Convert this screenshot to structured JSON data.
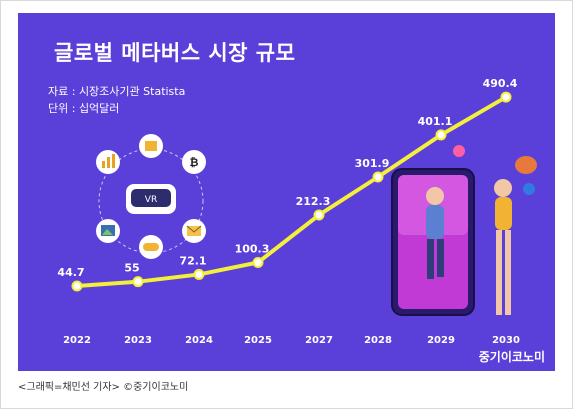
{
  "header": {
    "title": "글로벌 메타버스 시장 규모",
    "source": "자료 : 시장조사기관 Statista",
    "unit": "단위 : 십억달러"
  },
  "brand": "중기이코노미",
  "caption": "<그래픽=채민선 기자>  ©중기이코노미",
  "icons": [
    "chart-icon",
    "box-icon",
    "bitcoin-icon",
    "image-icon",
    "gamepad-icon",
    "mail-icon",
    "vr-headset-icon"
  ],
  "colors": {
    "background": "#5a3fd8",
    "line": "#f3ef3b",
    "text": "#ffffff"
  },
  "chart_data": {
    "type": "line",
    "title": "글로벌 메타버스 시장 규모",
    "categories": [
      "2022",
      "2023",
      "2024",
      "2025",
      "2027",
      "2028",
      "2029",
      "2030"
    ],
    "values": [
      44.7,
      55,
      72.1,
      100.3,
      212.3,
      301.9,
      401.1,
      490.4
    ],
    "value_labels": [
      "44.7",
      "55",
      "72.1",
      "100.3",
      "212.3",
      "301.9",
      "401.1",
      "490.4"
    ],
    "ylim": [
      0,
      500
    ],
    "grid": false
  }
}
